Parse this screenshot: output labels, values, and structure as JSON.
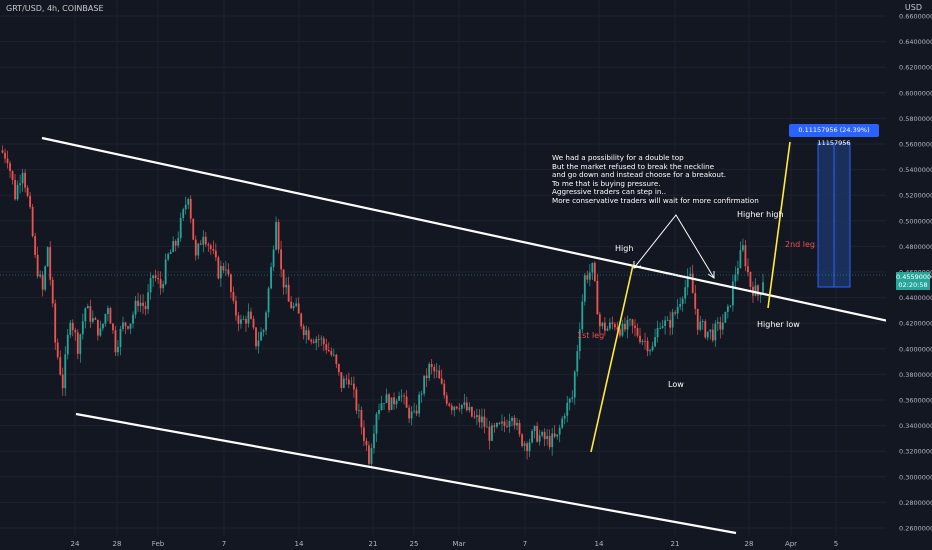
{
  "header": {
    "symbol": "GRT/USD, 4h, COINBASE",
    "currency": "USD"
  },
  "chart_data": {
    "type": "candlestick",
    "y_ticks": [
      "0.66000000",
      "0.64000000",
      "0.62000000",
      "0.60000000",
      "0.58000000",
      "0.56000000",
      "0.54000000",
      "0.52000000",
      "0.50000000",
      "0.48000000",
      "0.46000000",
      "0.44000000",
      "0.42000000",
      "0.40000000",
      "0.38000000",
      "0.36000000",
      "0.34000000",
      "0.32000000",
      "0.30000000",
      "0.28000000",
      "0.26000000"
    ],
    "x_ticks": [
      "24",
      "28",
      "Feb",
      "7",
      "14",
      "21",
      "25",
      "Mar",
      "7",
      "14",
      "21",
      "28",
      "Apr",
      "5"
    ],
    "price_path": [
      [
        0,
        0.555
      ],
      [
        3,
        0.55
      ],
      [
        6,
        0.52
      ],
      [
        9,
        0.542
      ],
      [
        12,
        0.505
      ],
      [
        14,
        0.47
      ],
      [
        17,
        0.445
      ],
      [
        19,
        0.48
      ],
      [
        22,
        0.405
      ],
      [
        25,
        0.372
      ],
      [
        28,
        0.426
      ],
      [
        31,
        0.402
      ],
      [
        34,
        0.432
      ],
      [
        37,
        0.422
      ],
      [
        40,
        0.412
      ],
      [
        43,
        0.435
      ],
      [
        46,
        0.402
      ],
      [
        49,
        0.418
      ],
      [
        52,
        0.422
      ],
      [
        55,
        0.438
      ],
      [
        58,
        0.432
      ],
      [
        61,
        0.458
      ],
      [
        64,
        0.448
      ],
      [
        67,
        0.472
      ],
      [
        70,
        0.482
      ],
      [
        73,
        0.505
      ],
      [
        75,
        0.522
      ],
      [
        78,
        0.47
      ],
      [
        81,
        0.492
      ],
      [
        84,
        0.478
      ],
      [
        87,
        0.46
      ],
      [
        90,
        0.466
      ],
      [
        93,
        0.432
      ],
      [
        96,
        0.42
      ],
      [
        99,
        0.426
      ],
      [
        102,
        0.405
      ],
      [
        105,
        0.415
      ],
      [
        108,
        0.462
      ],
      [
        110,
        0.505
      ],
      [
        112,
        0.46
      ],
      [
        115,
        0.436
      ],
      [
        118,
        0.43
      ],
      [
        121,
        0.416
      ],
      [
        124,
        0.41
      ],
      [
        127,
        0.408
      ],
      [
        130,
        0.402
      ],
      [
        133,
        0.392
      ],
      [
        136,
        0.372
      ],
      [
        139,
        0.378
      ],
      [
        142,
        0.355
      ],
      [
        145,
        0.332
      ],
      [
        147,
        0.315
      ],
      [
        150,
        0.352
      ],
      [
        153,
        0.362
      ],
      [
        156,
        0.356
      ],
      [
        159,
        0.368
      ],
      [
        162,
        0.352
      ],
      [
        165,
        0.346
      ],
      [
        168,
        0.368
      ],
      [
        171,
        0.385
      ],
      [
        174,
        0.38
      ],
      [
        177,
        0.364
      ],
      [
        180,
        0.356
      ],
      [
        183,
        0.358
      ],
      [
        186,
        0.352
      ],
      [
        189,
        0.345
      ],
      [
        192,
        0.344
      ],
      [
        195,
        0.333
      ],
      [
        198,
        0.337
      ],
      [
        201,
        0.34
      ],
      [
        204,
        0.352
      ],
      [
        207,
        0.33
      ],
      [
        210,
        0.326
      ],
      [
        213,
        0.334
      ],
      [
        216,
        0.33
      ],
      [
        219,
        0.328
      ],
      [
        222,
        0.33
      ],
      [
        225,
        0.352
      ],
      [
        228,
        0.362
      ],
      [
        231,
        0.42
      ],
      [
        233,
        0.456
      ],
      [
        236,
        0.462
      ],
      [
        239,
        0.418
      ],
      [
        242,
        0.416
      ],
      [
        245,
        0.42
      ],
      [
        248,
        0.414
      ],
      [
        251,
        0.418
      ],
      [
        254,
        0.412
      ],
      [
        257,
        0.406
      ],
      [
        260,
        0.4
      ],
      [
        263,
        0.422
      ],
      [
        266,
        0.418
      ],
      [
        269,
        0.428
      ],
      [
        272,
        0.445
      ],
      [
        275,
        0.455
      ],
      [
        278,
        0.42
      ],
      [
        281,
        0.414
      ],
      [
        284,
        0.412
      ],
      [
        287,
        0.418
      ],
      [
        290,
        0.428
      ],
      [
        293,
        0.46
      ],
      [
        296,
        0.478
      ],
      [
        299,
        0.45
      ],
      [
        302,
        0.442
      ],
      [
        304,
        0.455
      ]
    ],
    "annotations": {
      "notes": [
        "We had a possibility for a double top",
        "But the market refused to break the neckline",
        "and go down and instead choose for a breakout.",
        "To me that is buying pressure.",
        "Aggressive traders can step in..",
        "More conservative traders will wait for more confirmation"
      ],
      "high": "High",
      "low": "Low",
      "higher_high": "Higher high",
      "higher_low": "Higher low",
      "first_leg": "1st leg",
      "second_leg": "2nd leg",
      "measure": "0.11157956 (24.39%) 11157956",
      "last_price": "0.45590000",
      "countdown": "02:20:58"
    },
    "colors": {
      "up": "#26a69a",
      "down": "#ef5350",
      "leg": "#ffeb3b",
      "channel": "#ffffff",
      "measure_fill": "#1e3a6e",
      "measure_border": "#2962ff"
    }
  }
}
